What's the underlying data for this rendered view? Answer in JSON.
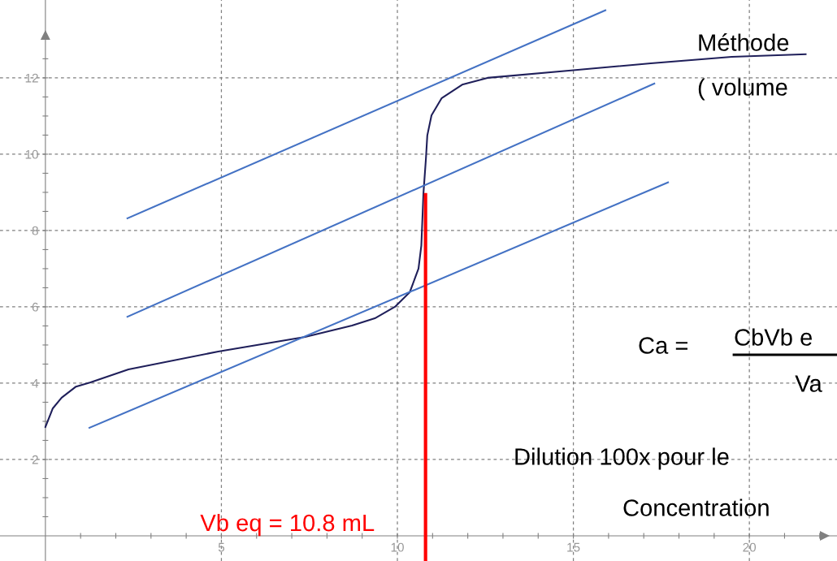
{
  "chart_data": {
    "type": "line",
    "xlim": [
      -1.29,
      22.49
    ],
    "ylim": [
      -0.66,
      14.04
    ],
    "xticks": [
      {
        "value": 1,
        "label": null
      },
      {
        "value": 2,
        "label": null
      },
      {
        "value": 3,
        "label": null
      },
      {
        "value": 4,
        "label": null
      },
      5,
      {
        "value": 6,
        "label": null
      },
      {
        "value": 7,
        "label": null
      },
      {
        "value": 8,
        "label": null
      },
      {
        "value": 9,
        "label": null
      },
      10,
      {
        "value": 11,
        "label": null
      },
      {
        "value": 12,
        "label": null
      },
      {
        "value": 13,
        "label": null
      },
      {
        "value": 14,
        "label": null
      },
      15,
      {
        "value": 16,
        "label": null
      },
      {
        "value": 17,
        "label": null
      },
      {
        "value": 18,
        "label": null
      },
      {
        "value": 19,
        "label": null
      },
      20,
      {
        "value": 21,
        "label": null
      },
      {
        "value": 22,
        "label": null
      }
    ],
    "yticks": [
      {
        "value": 0.5,
        "label": null
      },
      {
        "value": 1,
        "label": null
      },
      {
        "value": 1.5,
        "label": null
      },
      2,
      {
        "value": 2.5,
        "label": null
      },
      {
        "value": 3,
        "label": null
      },
      {
        "value": 3.5,
        "label": null
      },
      4,
      {
        "value": 4.5,
        "label": null
      },
      {
        "value": 5,
        "label": null
      },
      {
        "value": 5.5,
        "label": null
      },
      6,
      {
        "value": 6.5,
        "label": null
      },
      {
        "value": 7,
        "label": null
      },
      {
        "value": 7.5,
        "label": null
      },
      8,
      {
        "value": 8.5,
        "label": null
      },
      {
        "value": 9,
        "label": null
      },
      {
        "value": 9.5,
        "label": null
      },
      10,
      {
        "value": 10.5,
        "label": null
      },
      {
        "value": 11,
        "label": null
      },
      {
        "value": 11.5,
        "label": null
      },
      12,
      {
        "value": 12.5,
        "label": null
      }
    ],
    "grid": true,
    "marker": "none",
    "series": [
      {
        "color": "#1f1f5a",
        "x": [
          0,
          0.21,
          0.46,
          0.87,
          1.28,
          2.36,
          4.91,
          7.38,
          8.71,
          9.36,
          9.93,
          10.35,
          10.6,
          10.68,
          10.74,
          10.81,
          10.85,
          10.97,
          11.26,
          11.84,
          12.56,
          14.87,
          17.2,
          19.5,
          21.6
        ],
        "values": [
          2.85,
          3.34,
          3.62,
          3.91,
          4.02,
          4.36,
          4.83,
          5.21,
          5.51,
          5.7,
          6.0,
          6.38,
          7.0,
          7.6,
          8.97,
          9.87,
          10.49,
          11.02,
          11.47,
          11.82,
          12.0,
          12.19,
          12.38,
          12.55,
          12.62
        ]
      },
      {
        "color": "#4472c4",
        "x": [
          2.33,
          15.91
        ],
        "values": [
          8.32,
          13.77
        ]
      },
      {
        "color": "#4472c4",
        "x": [
          2.33,
          17.3
        ],
        "values": [
          5.74,
          11.85
        ]
      },
      {
        "color": "#4472c4",
        "x": [
          1.25,
          17.69
        ],
        "values": [
          2.83,
          9.26
        ]
      },
      {
        "name": "Vb eq = 10.8 mL",
        "color": "#ff0000",
        "x": [
          10.8,
          10.8
        ],
        "values": [
          -0.66,
          8.94
        ]
      }
    ],
    "annotations": [
      "Méthode",
      "( volume",
      "Ca =",
      "CbVb e",
      "Va",
      "Dilution 100x pour le",
      "Concentration"
    ]
  }
}
